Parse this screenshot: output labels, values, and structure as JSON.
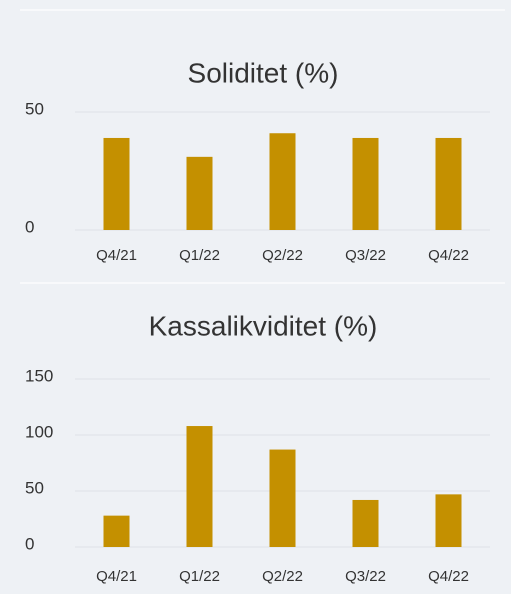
{
  "chart_data": [
    {
      "type": "bar",
      "title": "Soliditet (%)",
      "categories": [
        "Q4/21",
        "Q1/22",
        "Q2/22",
        "Q3/22",
        "Q4/22"
      ],
      "values": [
        39,
        31,
        41,
        39,
        39
      ],
      "color": "#c49000",
      "ylim": [
        0,
        50
      ],
      "yticks": [
        0,
        50
      ],
      "grid": true
    },
    {
      "type": "bar",
      "title": "Kassalikviditet (%)",
      "categories": [
        "Q4/21",
        "Q1/22",
        "Q2/22",
        "Q3/22",
        "Q4/22"
      ],
      "values": [
        28,
        108,
        87,
        42,
        47
      ],
      "color": "#c49000",
      "ylim": [
        0,
        150
      ],
      "yticks": [
        0,
        50,
        100,
        150
      ],
      "grid": true
    }
  ]
}
